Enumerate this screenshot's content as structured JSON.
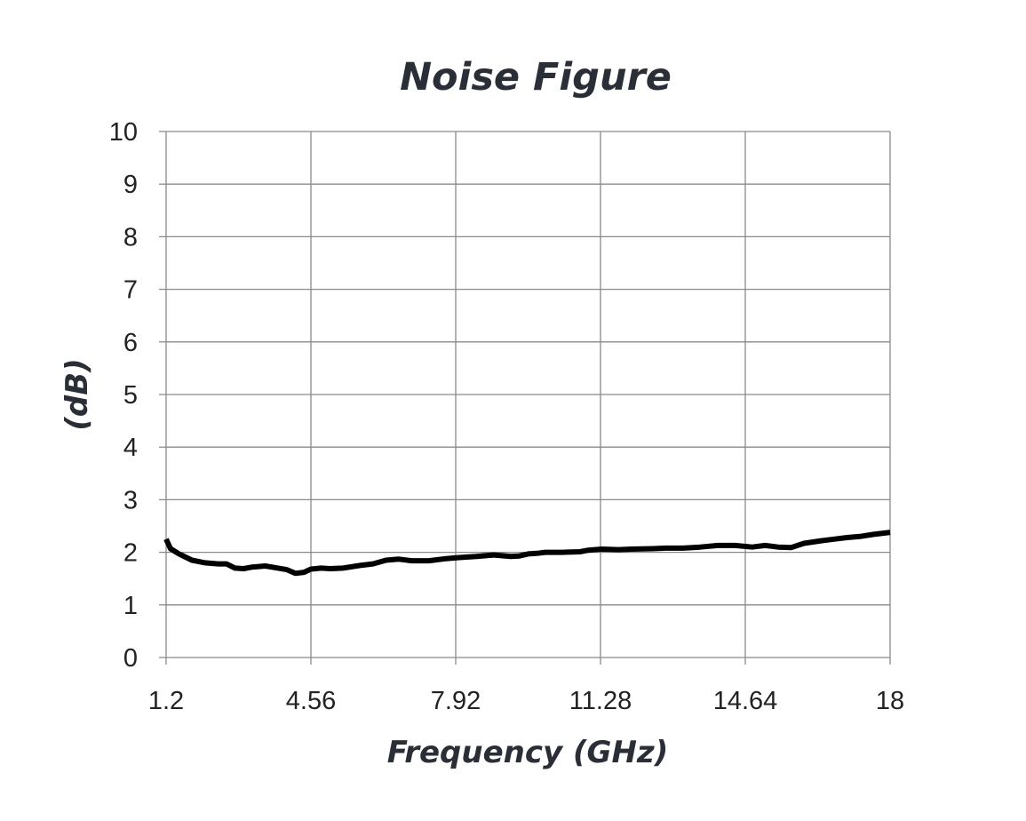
{
  "chart_data": {
    "type": "line",
    "title": "Noise Figure",
    "xlabel": "Frequency (GHz)",
    "ylabel": "(dB)",
    "xlim": [
      1.2,
      18
    ],
    "ylim": [
      0,
      10
    ],
    "x_ticks": [
      "1.2",
      "4.56",
      "7.92",
      "11.28",
      "14.64",
      "18"
    ],
    "y_ticks": [
      "0",
      "1",
      "2",
      "3",
      "4",
      "5",
      "6",
      "7",
      "8",
      "9",
      "10"
    ],
    "grid": true,
    "legend": "none",
    "series": [
      {
        "color": "#000000",
        "x": [
          1.2,
          1.3,
          1.5,
          1.8,
          2.1,
          2.4,
          2.6,
          2.8,
          3.0,
          3.2,
          3.5,
          3.8,
          4.0,
          4.2,
          4.4,
          4.56,
          4.8,
          5.0,
          5.3,
          5.7,
          6.0,
          6.3,
          6.6,
          6.9,
          7.1,
          7.3,
          7.7,
          8.0,
          8.4,
          8.8,
          9.2,
          9.4,
          9.6,
          9.8,
          10.0,
          10.4,
          10.8,
          11.0,
          11.3,
          11.7,
          12.0,
          12.5,
          12.8,
          13.2,
          13.6,
          14.0,
          14.4,
          14.8,
          15.1,
          15.4,
          15.7,
          16.0,
          16.4,
          16.7,
          17.0,
          17.3,
          17.6,
          18.0
        ],
        "y": [
          2.25,
          2.07,
          1.97,
          1.85,
          1.8,
          1.78,
          1.78,
          1.7,
          1.69,
          1.72,
          1.74,
          1.7,
          1.67,
          1.6,
          1.62,
          1.68,
          1.7,
          1.69,
          1.7,
          1.75,
          1.78,
          1.85,
          1.87,
          1.84,
          1.84,
          1.84,
          1.88,
          1.9,
          1.92,
          1.95,
          1.92,
          1.93,
          1.97,
          1.98,
          2.0,
          2.0,
          2.01,
          2.04,
          2.06,
          2.05,
          2.06,
          2.07,
          2.08,
          2.08,
          2.1,
          2.13,
          2.13,
          2.1,
          2.13,
          2.1,
          2.09,
          2.17,
          2.22,
          2.25,
          2.28,
          2.3,
          2.34,
          2.38
        ]
      }
    ]
  }
}
